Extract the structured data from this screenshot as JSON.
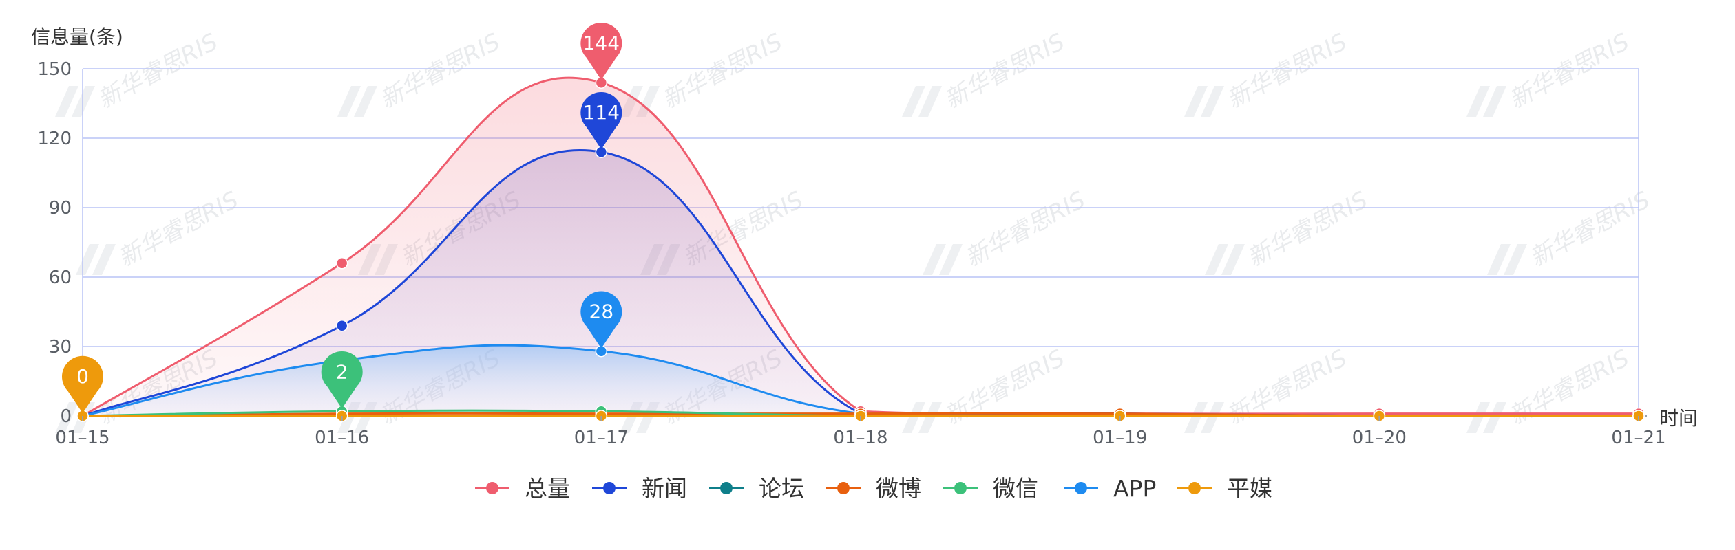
{
  "chart_data": {
    "type": "line",
    "ylabel": "信息量(条)",
    "xlabel": "时间",
    "x": [
      "01–15",
      "01–16",
      "01–17",
      "01–18",
      "01–19",
      "01–20",
      "01–21"
    ],
    "yticks": [
      "0",
      "30",
      "60",
      "90",
      "120",
      "150"
    ],
    "ylim": [
      0,
      150
    ],
    "grid": true,
    "legend_position": "bottom-center",
    "watermark": "新华睿思RIS",
    "series": [
      {
        "name": "总量",
        "color": "#ef5d6e",
        "values": [
          0,
          66,
          144,
          2,
          1,
          1,
          1
        ],
        "area": true
      },
      {
        "name": "新闻",
        "color": "#1f47d8",
        "values": [
          0,
          39,
          114,
          1,
          1,
          0,
          0
        ],
        "area": true
      },
      {
        "name": "论坛",
        "color": "#0f7f8a",
        "values": [
          0,
          0,
          0,
          0,
          0,
          0,
          0
        ],
        "area": false
      },
      {
        "name": "微博",
        "color": "#e8600f",
        "values": [
          0,
          1,
          1,
          1,
          1,
          0,
          0
        ],
        "area": false
      },
      {
        "name": "微信",
        "color": "#3cc17a",
        "values": [
          0,
          2,
          2,
          0,
          0,
          0,
          0
        ],
        "area": false
      },
      {
        "name": "APP",
        "color": "#1e8bf0",
        "values": [
          0,
          24,
          28,
          1,
          0,
          0,
          0
        ],
        "area": true
      },
      {
        "name": "平媒",
        "color": "#ee9a0c",
        "values": [
          0,
          0,
          0,
          0,
          0,
          0,
          0
        ],
        "area": false
      }
    ],
    "annotations": [
      {
        "series": "总量",
        "x": "01–17",
        "label": "144"
      },
      {
        "series": "新闻",
        "x": "01–17",
        "label": "114"
      },
      {
        "series": "APP",
        "x": "01–17",
        "label": "28"
      },
      {
        "series": "微信",
        "x": "01–16",
        "label": "2"
      },
      {
        "series": "平媒",
        "x": "01–15",
        "label": "0"
      }
    ]
  }
}
